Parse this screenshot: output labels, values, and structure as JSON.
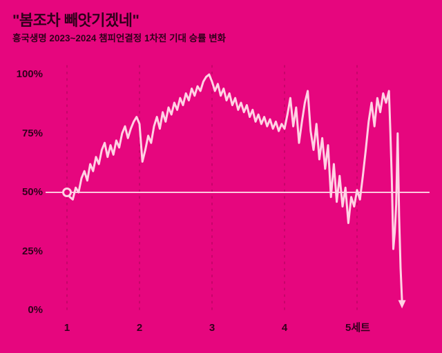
{
  "header": {
    "title": "\"봄조차 빼앗기겠네\"",
    "subtitle": "흥국생명 2023~2024 챔피언결정 1차전 기대 승률 변화"
  },
  "colors": {
    "background": "#e6067e",
    "text": "#30001b",
    "gridline": "#bf0566",
    "line": "#ffd2e4"
  },
  "chart_data": {
    "type": "line",
    "title": "\"봄조차 빼앗기겠네\"",
    "subtitle": "흥국생명 2023~2024 챔피언결정 1차전 기대 승률 변화",
    "xlabel": "",
    "ylabel": "",
    "x_range": [
      1,
      6
    ],
    "y_range": [
      0,
      100
    ],
    "x_ticks": [
      1,
      2,
      3,
      4,
      5
    ],
    "x_tick_labels": [
      "1",
      "2",
      "3",
      "4",
      "5세트"
    ],
    "y_ticks": [
      100,
      75,
      50,
      25,
      0
    ],
    "y_tick_labels": [
      "100%",
      "75%",
      "50%",
      "25%",
      "0%"
    ],
    "gridlines": "vertical-dashed",
    "baseline_y": 50,
    "start_marker": "open-circle",
    "end_marker": "arrow-down",
    "legend": "none",
    "series": [
      {
        "name": "기대 승률",
        "points": [
          [
            1.0,
            50
          ],
          [
            1.04,
            48
          ],
          [
            1.08,
            47
          ],
          [
            1.12,
            52
          ],
          [
            1.16,
            50
          ],
          [
            1.2,
            56
          ],
          [
            1.24,
            59
          ],
          [
            1.28,
            55
          ],
          [
            1.32,
            62
          ],
          [
            1.36,
            59
          ],
          [
            1.4,
            65
          ],
          [
            1.44,
            62
          ],
          [
            1.48,
            68
          ],
          [
            1.52,
            71
          ],
          [
            1.56,
            65
          ],
          [
            1.6,
            70
          ],
          [
            1.64,
            66
          ],
          [
            1.68,
            72
          ],
          [
            1.72,
            69
          ],
          [
            1.76,
            75
          ],
          [
            1.8,
            78
          ],
          [
            1.84,
            73
          ],
          [
            1.88,
            77
          ],
          [
            1.92,
            80
          ],
          [
            1.96,
            82
          ],
          [
            2.0,
            79
          ],
          [
            2.04,
            63
          ],
          [
            2.08,
            68
          ],
          [
            2.12,
            74
          ],
          [
            2.16,
            71
          ],
          [
            2.2,
            78
          ],
          [
            2.24,
            82
          ],
          [
            2.28,
            77
          ],
          [
            2.32,
            84
          ],
          [
            2.36,
            80
          ],
          [
            2.4,
            86
          ],
          [
            2.44,
            83
          ],
          [
            2.48,
            88
          ],
          [
            2.52,
            85
          ],
          [
            2.56,
            90
          ],
          [
            2.6,
            87
          ],
          [
            2.64,
            92
          ],
          [
            2.68,
            89
          ],
          [
            2.72,
            94
          ],
          [
            2.76,
            91
          ],
          [
            2.8,
            95
          ],
          [
            2.84,
            93
          ],
          [
            2.88,
            97
          ],
          [
            2.92,
            99
          ],
          [
            2.96,
            100
          ],
          [
            3.0,
            97
          ],
          [
            3.04,
            93
          ],
          [
            3.08,
            96
          ],
          [
            3.12,
            91
          ],
          [
            3.16,
            94
          ],
          [
            3.2,
            89
          ],
          [
            3.24,
            92
          ],
          [
            3.28,
            87
          ],
          [
            3.32,
            90
          ],
          [
            3.36,
            85
          ],
          [
            3.4,
            88
          ],
          [
            3.44,
            84
          ],
          [
            3.48,
            87
          ],
          [
            3.52,
            82
          ],
          [
            3.56,
            85
          ],
          [
            3.6,
            80
          ],
          [
            3.64,
            83
          ],
          [
            3.68,
            79
          ],
          [
            3.72,
            82
          ],
          [
            3.76,
            78
          ],
          [
            3.8,
            81
          ],
          [
            3.84,
            77
          ],
          [
            3.88,
            80
          ],
          [
            3.92,
            76
          ],
          [
            3.96,
            79
          ],
          [
            4.0,
            77
          ],
          [
            4.04,
            83
          ],
          [
            4.08,
            90
          ],
          [
            4.12,
            78
          ],
          [
            4.16,
            86
          ],
          [
            4.2,
            71
          ],
          [
            4.24,
            80
          ],
          [
            4.28,
            88
          ],
          [
            4.32,
            93
          ],
          [
            4.36,
            76
          ],
          [
            4.4,
            68
          ],
          [
            4.44,
            79
          ],
          [
            4.48,
            64
          ],
          [
            4.52,
            73
          ],
          [
            4.56,
            60
          ],
          [
            4.6,
            70
          ],
          [
            4.64,
            48
          ],
          [
            4.68,
            62
          ],
          [
            4.72,
            46
          ],
          [
            4.76,
            57
          ],
          [
            4.8,
            44
          ],
          [
            4.84,
            52
          ],
          [
            4.88,
            37
          ],
          [
            4.92,
            48
          ],
          [
            4.96,
            44
          ],
          [
            5.0,
            51
          ],
          [
            5.04,
            47
          ],
          [
            5.08,
            57
          ],
          [
            5.12,
            68
          ],
          [
            5.16,
            80
          ],
          [
            5.2,
            88
          ],
          [
            5.24,
            78
          ],
          [
            5.28,
            90
          ],
          [
            5.32,
            84
          ],
          [
            5.36,
            92
          ],
          [
            5.4,
            88
          ],
          [
            5.44,
            93
          ],
          [
            5.46,
            75
          ],
          [
            5.48,
            55
          ],
          [
            5.5,
            26
          ],
          [
            5.52,
            33
          ],
          [
            5.54,
            45
          ],
          [
            5.56,
            75
          ],
          [
            5.58,
            40
          ],
          [
            5.6,
            18
          ],
          [
            5.62,
            4
          ]
        ]
      }
    ]
  }
}
